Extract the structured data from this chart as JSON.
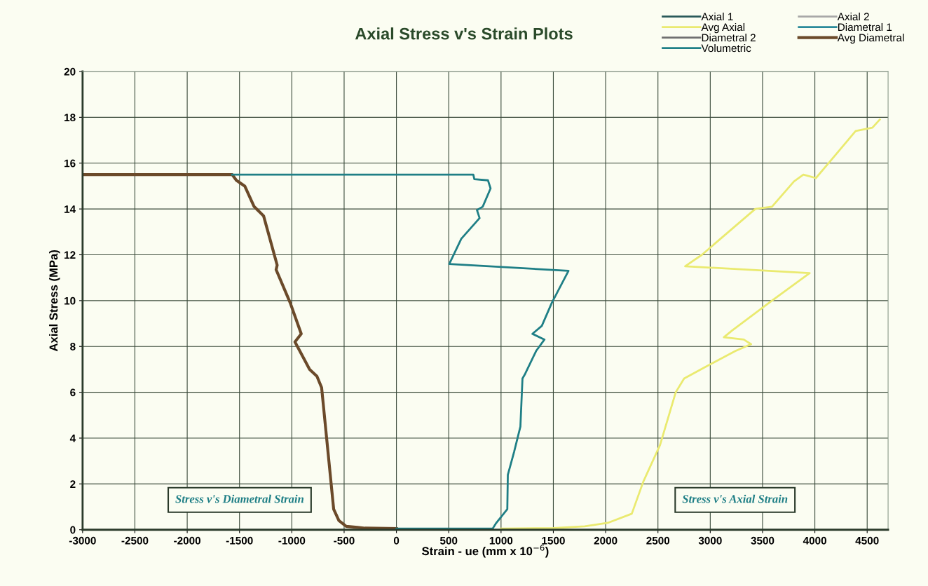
{
  "chart_data": {
    "type": "line",
    "title": "Axial Stress v's Strain Plots",
    "xlabel": "Strain - ue (mm x 10$^{−6}$)",
    "ylabel": "Axial Stress (MPa)",
    "annotations": [
      "Stress v's Diametral Strain",
      "Stress v's Axial Strain"
    ],
    "xlim": [
      -3000,
      4700
    ],
    "xticks": [
      -3000,
      -2500,
      -2000,
      -1500,
      -1000,
      -500,
      0,
      500,
      1000,
      1500,
      2000,
      2500,
      3000,
      3500,
      4000,
      4500
    ],
    "ylim": [
      0,
      20
    ],
    "yticks": [
      0,
      2,
      4,
      6,
      8,
      10,
      12,
      14,
      16,
      18,
      20
    ],
    "grid": true,
    "legend": "top right",
    "marker": "none",
    "line_style": "solid",
    "series": [
      {
        "name": "Axial 1",
        "color": "#2a5a5a"
      },
      {
        "name": "Axial 2",
        "color": "#a8a8a8"
      },
      {
        "name": "Avg Axial",
        "color": "#eaea70",
        "x": [
          1000,
          1500,
          1800,
          2020,
          2250,
          2360,
          2520,
          2670,
          2750,
          2950,
          3240,
          3390,
          3320,
          3130,
          3210,
          3590,
          3950,
          2760,
          2920,
          3430,
          3590,
          3800,
          3890,
          4010,
          4150,
          4390,
          4550,
          4620
        ],
        "values": [
          0.05,
          0.07,
          0.15,
          0.3,
          0.7,
          2.1,
          3.7,
          6.0,
          6.6,
          7.1,
          7.8,
          8.1,
          8.3,
          8.4,
          8.7,
          10.0,
          11.2,
          11.5,
          12.0,
          14.0,
          14.1,
          15.2,
          15.5,
          15.35,
          16.1,
          17.4,
          17.55,
          17.9
        ]
      },
      {
        "name": "Diametral 1",
        "color": "#2a8a9a"
      },
      {
        "name": "Diametral 2",
        "color": "#707070"
      },
      {
        "name": "Avg Diametral",
        "color": "#6b4a2a",
        "x": [
          0,
          -300,
          -480,
          -550,
          -600,
          -715,
          -760,
          -830,
          -970,
          -910,
          -1015,
          -1150,
          -1140,
          -1270,
          -1360,
          -1450,
          -1530,
          -1570,
          -3000
        ],
        "values": [
          0.05,
          0.07,
          0.15,
          0.4,
          0.9,
          6.2,
          6.7,
          7.0,
          8.2,
          8.55,
          9.9,
          11.35,
          11.55,
          13.7,
          14.1,
          15.0,
          15.25,
          15.5,
          15.5
        ]
      },
      {
        "name": "Volumetric",
        "color": "#1f7f86",
        "x": [
          0,
          920,
          950,
          1060,
          1065,
          1125,
          1185,
          1205,
          1230,
          1335,
          1415,
          1300,
          1390,
          1485,
          1645,
          505,
          620,
          795,
          770,
          825,
          900,
          875,
          745,
          735,
          -1570
        ],
        "values": [
          0.05,
          0.05,
          0.27,
          0.9,
          2.4,
          3.4,
          4.5,
          6.6,
          6.8,
          7.8,
          8.3,
          8.55,
          8.9,
          9.9,
          11.3,
          11.6,
          12.7,
          13.6,
          13.95,
          14.1,
          14.9,
          15.25,
          15.3,
          15.5,
          15.5
        ]
      }
    ]
  }
}
